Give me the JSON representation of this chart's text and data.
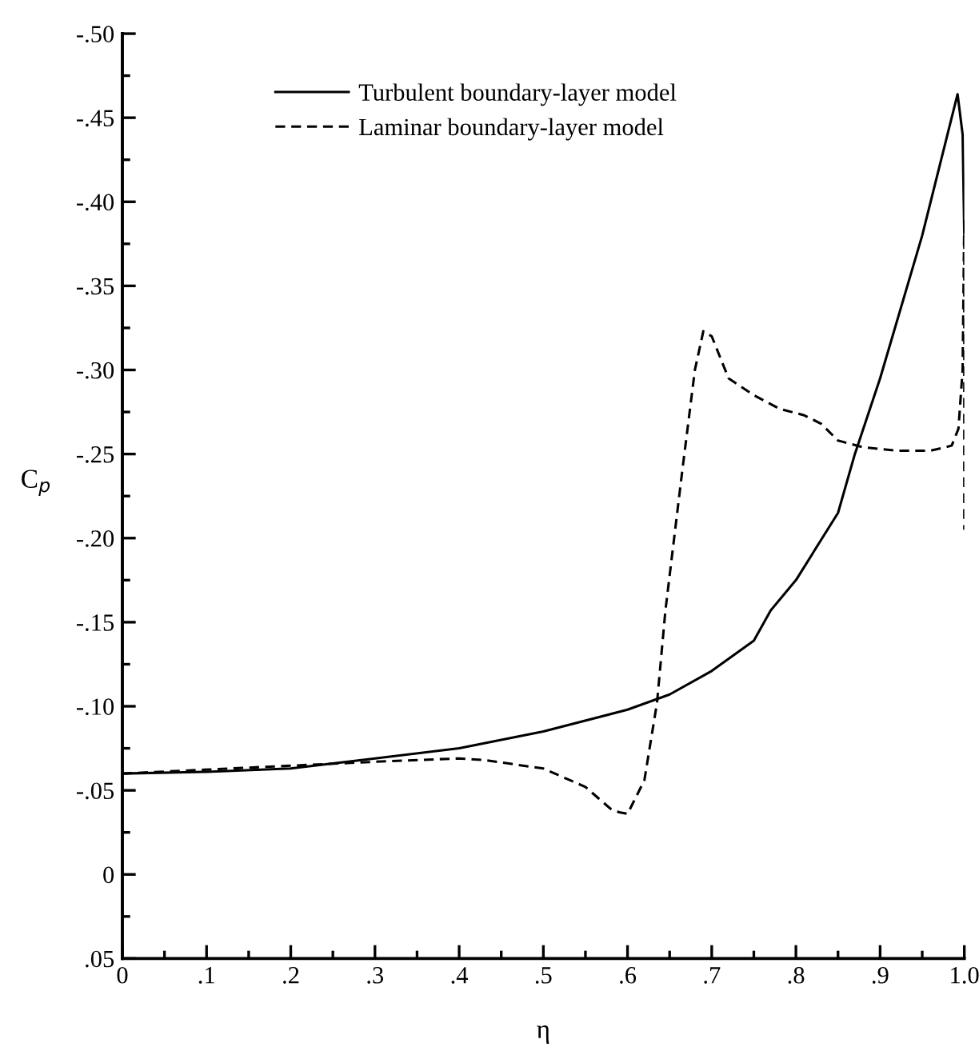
{
  "chart_data": {
    "type": "line",
    "xlabel": "η",
    "ylabel": "C$_{p}$",
    "xlim": [
      0,
      1.0
    ],
    "ylim": [
      0.05,
      -0.5
    ],
    "xticks": [
      {
        "value": 0,
        "label": "0"
      },
      {
        "value": 0.05,
        "label": null
      },
      {
        "value": 0.1,
        "label": ".1"
      },
      {
        "value": 0.15,
        "label": null
      },
      {
        "value": 0.2,
        "label": ".2"
      },
      {
        "value": 0.25,
        "label": null
      },
      {
        "value": 0.3,
        "label": ".3"
      },
      {
        "value": 0.35,
        "label": null
      },
      {
        "value": 0.4,
        "label": ".4"
      },
      {
        "value": 0.45,
        "label": null
      },
      {
        "value": 0.5,
        "label": ".5"
      },
      {
        "value": 0.55,
        "label": null
      },
      {
        "value": 0.6,
        "label": ".6"
      },
      {
        "value": 0.65,
        "label": null
      },
      {
        "value": 0.7,
        "label": ".7"
      },
      {
        "value": 0.75,
        "label": null
      },
      {
        "value": 0.8,
        "label": ".8"
      },
      {
        "value": 0.85,
        "label": null
      },
      {
        "value": 0.9,
        "label": ".9"
      },
      {
        "value": 0.95,
        "label": null
      },
      {
        "value": 1.0,
        "label": "1.0"
      }
    ],
    "yticks": [
      {
        "value": 0.05,
        "label": ".05"
      },
      {
        "value": 0.025,
        "label": null
      },
      {
        "value": 0,
        "label": "0"
      },
      {
        "value": -0.025,
        "label": null
      },
      {
        "value": -0.05,
        "label": "-.05"
      },
      {
        "value": -0.075,
        "label": null
      },
      {
        "value": -0.1,
        "label": "-.10"
      },
      {
        "value": -0.125,
        "label": null
      },
      {
        "value": -0.15,
        "label": "-.15"
      },
      {
        "value": -0.175,
        "label": null
      },
      {
        "value": -0.2,
        "label": "-.20"
      },
      {
        "value": -0.225,
        "label": null
      },
      {
        "value": -0.25,
        "label": "-.25"
      },
      {
        "value": -0.275,
        "label": null
      },
      {
        "value": -0.3,
        "label": "-.30"
      },
      {
        "value": -0.325,
        "label": null
      },
      {
        "value": -0.35,
        "label": "-.35"
      },
      {
        "value": -0.375,
        "label": null
      },
      {
        "value": -0.4,
        "label": "-.40"
      },
      {
        "value": -0.425,
        "label": null
      },
      {
        "value": -0.45,
        "label": "-.45"
      },
      {
        "value": -0.475,
        "label": null
      },
      {
        "value": -0.5,
        "label": "-.50"
      }
    ],
    "grid": false,
    "legend": "top",
    "series": [
      {
        "name": "Turbulent boundary-layer model",
        "color": "#000000",
        "line_style": "solid",
        "x": [
          0,
          0.1,
          0.2,
          0.3,
          0.4,
          0.5,
          0.6,
          0.65,
          0.7,
          0.75,
          0.77,
          0.8,
          0.85,
          0.87,
          0.9,
          0.95,
          0.98,
          0.992,
          0.998,
          1.0
        ],
        "values": [
          -0.06,
          -0.061,
          -0.063,
          -0.069,
          -0.075,
          -0.085,
          -0.098,
          -0.107,
          -0.121,
          -0.139,
          -0.157,
          -0.175,
          -0.215,
          -0.25,
          -0.295,
          -0.38,
          -0.44,
          -0.464,
          -0.44,
          -0.38
        ]
      },
      {
        "name": "Laminar boundary-layer model",
        "color": "#000000",
        "line_style": "dashed",
        "x": [
          0,
          0.3,
          0.4,
          0.43,
          0.5,
          0.55,
          0.58,
          0.59,
          0.6,
          0.62,
          0.635,
          0.645,
          0.665,
          0.68,
          0.69,
          0.7,
          0.72,
          0.75,
          0.78,
          0.81,
          0.83,
          0.85,
          0.88,
          0.92,
          0.96,
          0.985,
          0.993,
          0.998,
          1.0,
          1.0
        ],
        "values": [
          -0.06,
          -0.067,
          -0.069,
          -0.068,
          -0.063,
          -0.052,
          -0.039,
          -0.037,
          -0.036,
          -0.056,
          -0.102,
          -0.157,
          -0.24,
          -0.3,
          -0.323,
          -0.32,
          -0.295,
          -0.285,
          -0.277,
          -0.273,
          -0.268,
          -0.258,
          -0.254,
          -0.252,
          -0.252,
          -0.255,
          -0.265,
          -0.3,
          -0.39,
          -0.205
        ]
      }
    ]
  }
}
